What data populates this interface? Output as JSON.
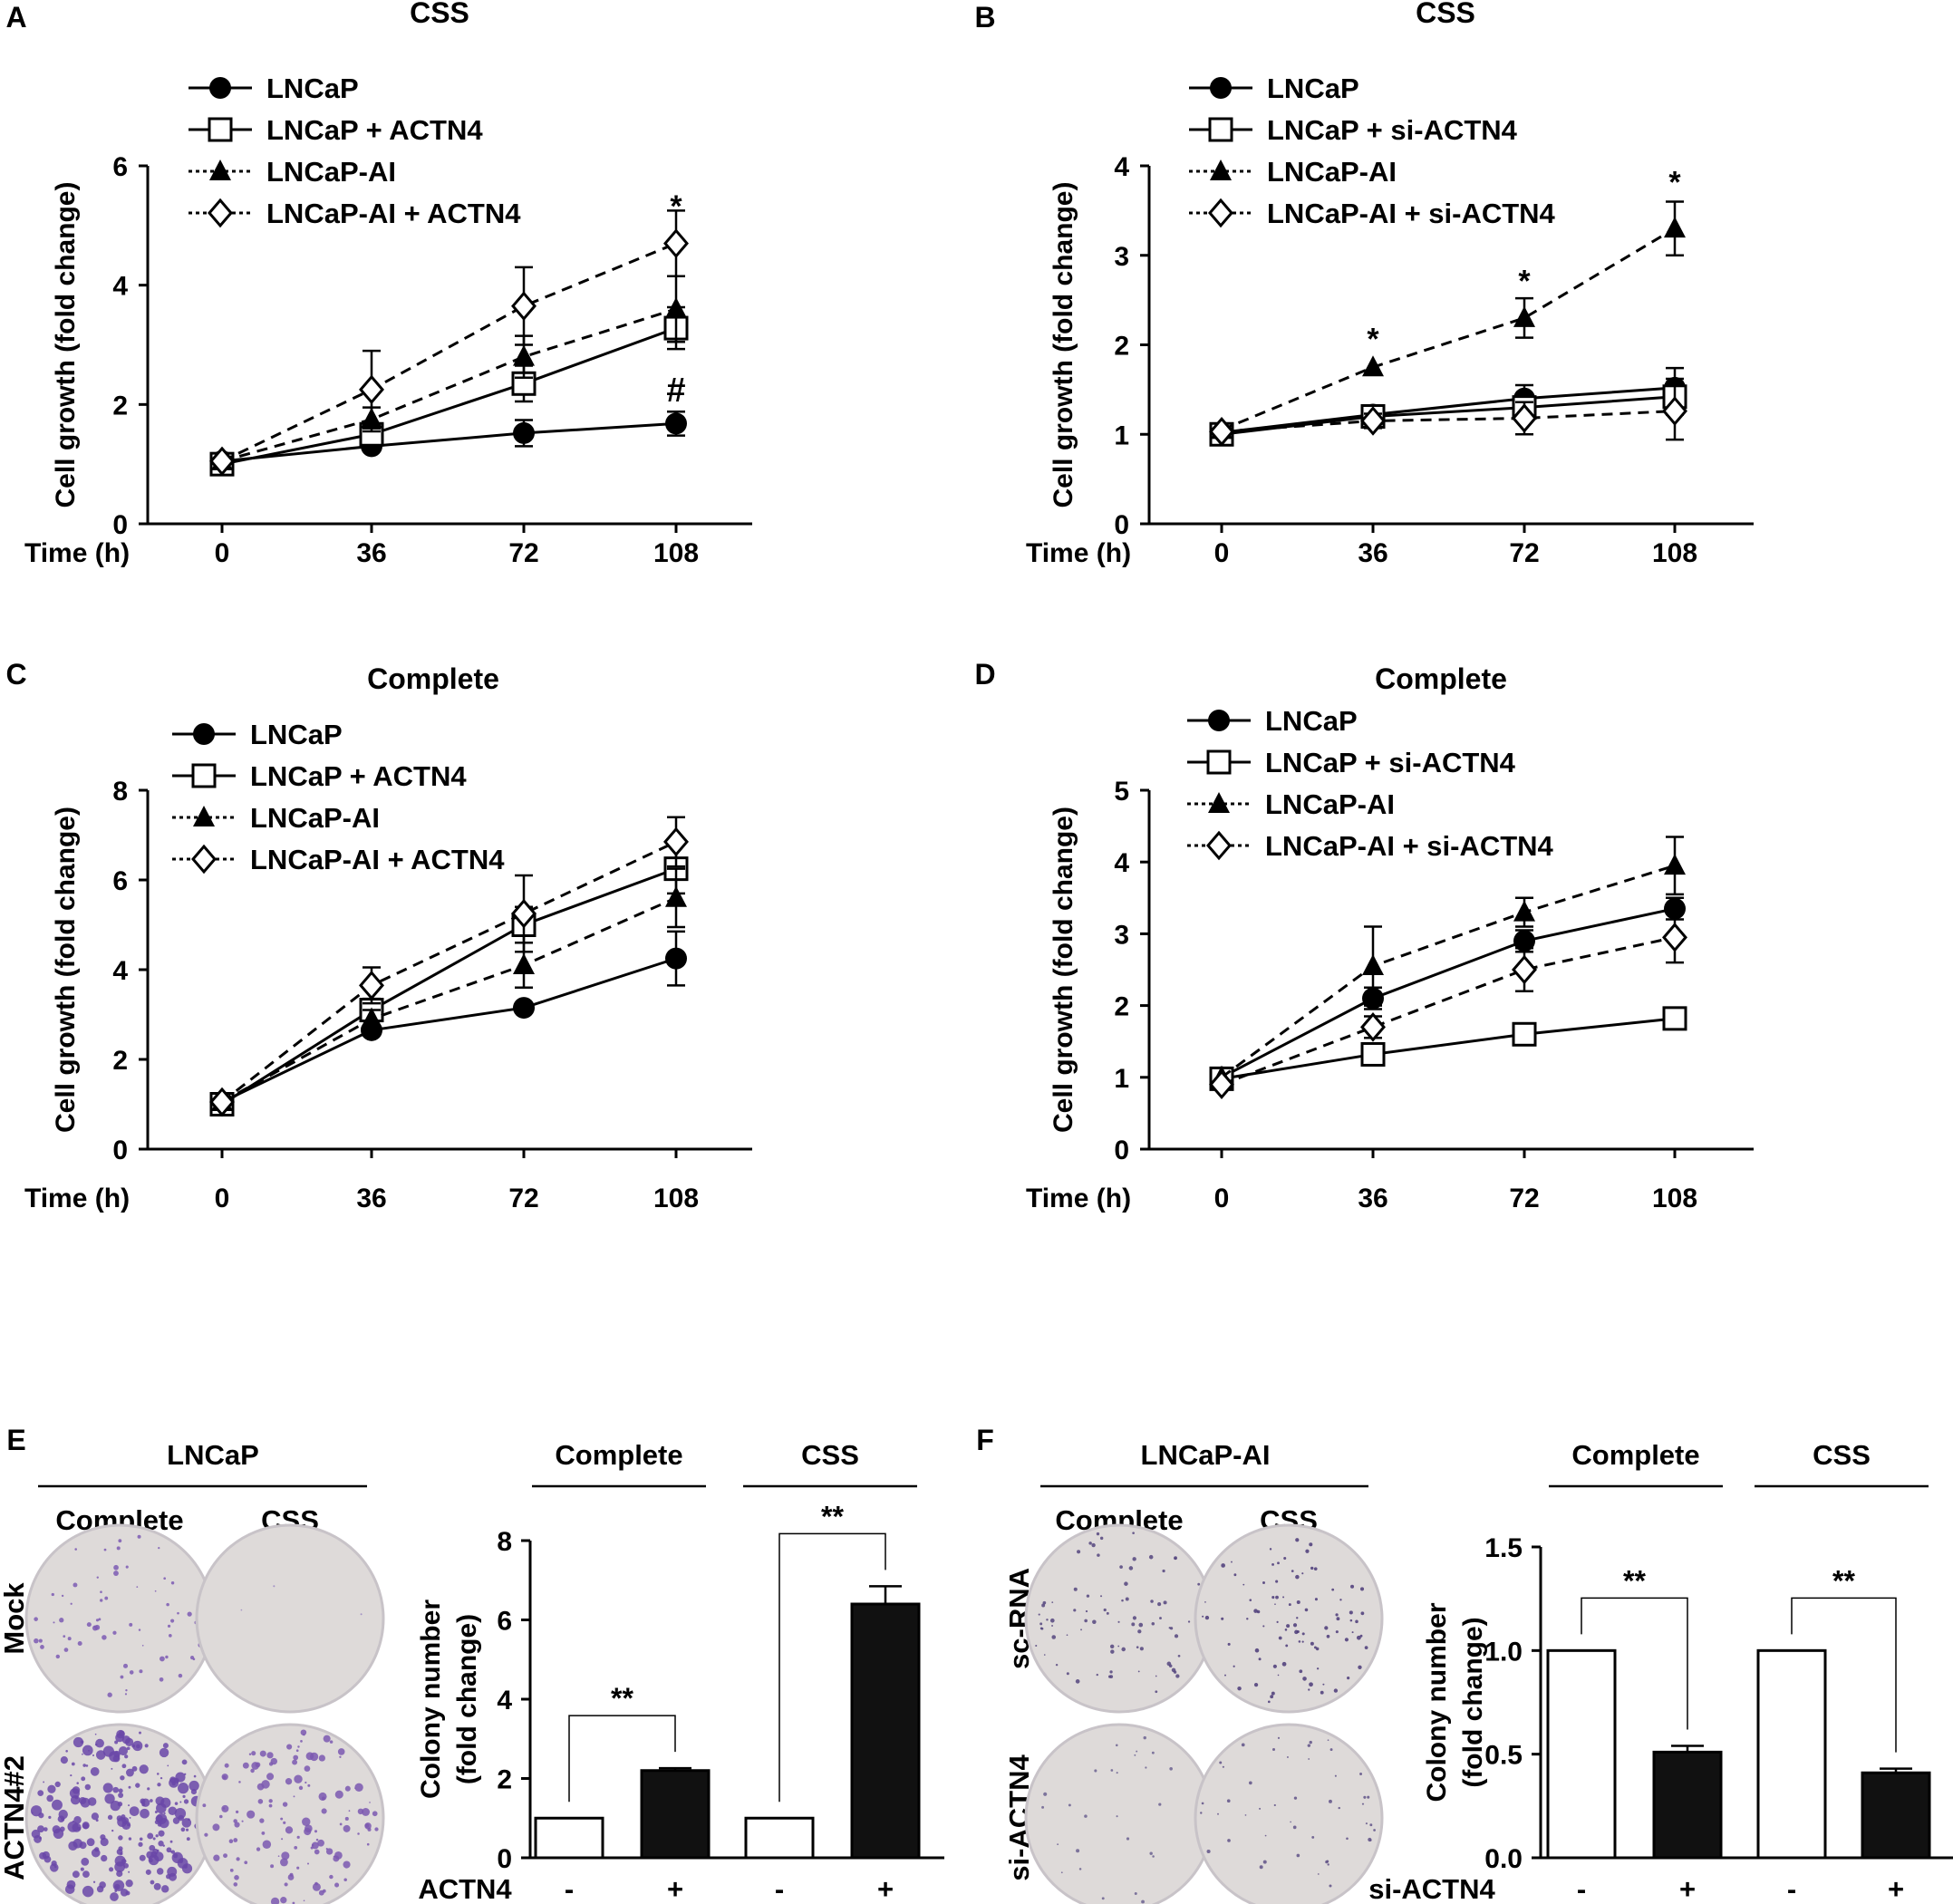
{
  "chart_data": [
    {
      "panel": "A",
      "type": "line",
      "title": "CSS",
      "ylabel": "Cell growth (fold change)",
      "xlabel": "Time (h)",
      "x": [
        0,
        36,
        72,
        108
      ],
      "ylim": [
        0,
        6
      ],
      "yticks": [
        0,
        2,
        4,
        6
      ],
      "series": [
        {
          "name": "LNCaP",
          "marker": "circle",
          "values": [
            1.05,
            1.3,
            1.52,
            1.68
          ],
          "err": [
            0.05,
            0.08,
            0.22,
            0.2
          ]
        },
        {
          "name": "LNCaP + ACTN4",
          "marker": "square",
          "values": [
            1.0,
            1.5,
            2.35,
            3.28
          ],
          "err": [
            0.05,
            0.15,
            0.3,
            0.35
          ]
        },
        {
          "name": "LNCaP-AI",
          "marker": "triangle",
          "values": [
            1.05,
            1.75,
            2.8,
            3.6
          ],
          "err": [
            0.05,
            0.2,
            0.35,
            0.55
          ]
        },
        {
          "name": "LNCaP-AI + ACTN4",
          "marker": "diamond",
          "values": [
            1.05,
            2.25,
            3.65,
            4.7
          ],
          "err": [
            0.05,
            0.65,
            0.65,
            0.55
          ]
        }
      ],
      "annotations": [
        {
          "text": "*",
          "x": 108,
          "y": 5.15
        },
        {
          "text": "#",
          "x": 108,
          "y": 2.05
        }
      ]
    },
    {
      "panel": "B",
      "type": "line",
      "title": "CSS",
      "ylabel": "Cell growth (fold change)",
      "xlabel": "Time (h)",
      "x": [
        0,
        36,
        72,
        108
      ],
      "ylim": [
        0,
        4
      ],
      "yticks": [
        0,
        1,
        2,
        3,
        4
      ],
      "series": [
        {
          "name": "LNCaP",
          "marker": "circle",
          "values": [
            1.02,
            1.22,
            1.4,
            1.52
          ],
          "err": [
            0.04,
            0.06,
            0.15,
            0.22
          ]
        },
        {
          "name": "LNCaP + si-ACTN4",
          "marker": "square",
          "values": [
            1.0,
            1.2,
            1.3,
            1.42
          ],
          "err": [
            0.04,
            0.06,
            0.12,
            0.2
          ]
        },
        {
          "name": "LNCaP-AI",
          "marker": "triangle",
          "values": [
            1.05,
            1.75,
            2.3,
            3.3
          ],
          "err": [
            0.04,
            0.06,
            0.22,
            0.3
          ]
        },
        {
          "name": "LNCaP-AI + si-ACTN4",
          "marker": "diamond",
          "values": [
            1.03,
            1.15,
            1.18,
            1.26
          ],
          "err": [
            0.04,
            0.08,
            0.18,
            0.32
          ]
        }
      ],
      "annotations": [
        {
          "text": "*",
          "x": 36,
          "y": 1.95
        },
        {
          "text": "*",
          "x": 72,
          "y": 2.6
        },
        {
          "text": "*",
          "x": 108,
          "y": 3.7
        }
      ]
    },
    {
      "panel": "C",
      "type": "line",
      "title": "Complete",
      "ylabel": "Cell growth (fold change)",
      "xlabel": "Time (h)",
      "x": [
        0,
        36,
        72,
        108
      ],
      "ylim": [
        0,
        8
      ],
      "yticks": [
        0,
        2,
        4,
        6,
        8
      ],
      "series": [
        {
          "name": "LNCaP",
          "marker": "circle",
          "values": [
            1.05,
            2.65,
            3.15,
            4.25
          ],
          "err": [
            0.05,
            0.1,
            0.1,
            0.6
          ]
        },
        {
          "name": "LNCaP + ACTN4",
          "marker": "square",
          "values": [
            1.0,
            3.1,
            5.0,
            6.25
          ],
          "err": [
            0.05,
            0.25,
            0.4,
            0.55
          ]
        },
        {
          "name": "LNCaP-AI",
          "marker": "triangle",
          "values": [
            1.05,
            2.9,
            4.1,
            5.6
          ],
          "err": [
            0.05,
            0.2,
            0.5,
            0.65
          ]
        },
        {
          "name": "LNCaP-AI + ACTN4",
          "marker": "diamond",
          "values": [
            1.05,
            3.65,
            5.25,
            6.85
          ],
          "err": [
            0.05,
            0.4,
            0.85,
            0.55
          ]
        }
      ],
      "annotations": []
    },
    {
      "panel": "D",
      "type": "line",
      "title": "Complete",
      "ylabel": "Cell growth (fold change)",
      "xlabel": "Time (h)",
      "x": [
        0,
        36,
        72,
        108
      ],
      "ylim": [
        0,
        5
      ],
      "yticks": [
        0,
        1,
        2,
        3,
        4,
        5
      ],
      "series": [
        {
          "name": "LNCaP",
          "marker": "circle",
          "values": [
            1.0,
            2.1,
            2.9,
            3.35
          ],
          "err": [
            0.05,
            0.15,
            0.15,
            0.15
          ]
        },
        {
          "name": "LNCaP + si-ACTN4",
          "marker": "square",
          "values": [
            0.98,
            1.32,
            1.6,
            1.82
          ],
          "err": [
            0.05,
            0.08,
            0.08,
            0.08
          ]
        },
        {
          "name": "LNCaP-AI",
          "marker": "triangle",
          "values": [
            1.0,
            2.55,
            3.3,
            3.95
          ],
          "err": [
            0.05,
            0.55,
            0.2,
            0.4
          ]
        },
        {
          "name": "LNCaP-AI + si-ACTN4",
          "marker": "diamond",
          "values": [
            0.9,
            1.7,
            2.5,
            2.95
          ],
          "err": [
            0.05,
            0.15,
            0.3,
            0.35
          ]
        }
      ],
      "annotations": []
    },
    {
      "panel": "E",
      "type": "bar",
      "image_group": {
        "title": "LNCaP",
        "columns": [
          "Complete",
          "CSS"
        ],
        "rows": [
          "Mock",
          "ACTN4#2"
        ]
      },
      "group_labels": [
        "Complete",
        "CSS"
      ],
      "ylabel_lines": [
        "Colony number",
        "(fold change)"
      ],
      "ylim": [
        0,
        8
      ],
      "yticks": [
        "0",
        "2",
        "4",
        "6",
        "8"
      ],
      "row_label": "ACTN4",
      "conditions": [
        "-",
        "+",
        "-",
        "+"
      ],
      "values": [
        1.0,
        2.2,
        1.0,
        6.4
      ],
      "err": [
        0,
        0.06,
        0,
        0.45
      ],
      "fills": [
        "open",
        "filled",
        "open",
        "filled"
      ],
      "significance": [
        {
          "text": "**",
          "pair": [
            0,
            1
          ]
        },
        {
          "text": "**",
          "pair": [
            2,
            3
          ]
        }
      ]
    },
    {
      "panel": "F",
      "type": "bar",
      "image_group": {
        "title": "LNCaP-AI",
        "columns": [
          "Complete",
          "CSS"
        ],
        "rows": [
          "sc-RNA",
          "si-ACTN4"
        ]
      },
      "group_labels": [
        "Complete",
        "CSS"
      ],
      "ylabel_lines": [
        "Colony number",
        "(fold change)"
      ],
      "ylim": [
        0,
        1.5
      ],
      "yticks": [
        "0.0",
        "0.5",
        "1.0",
        "1.5"
      ],
      "row_label": "si-ACTN4",
      "conditions": [
        "-",
        "+",
        "-",
        "+"
      ],
      "values": [
        1.0,
        0.51,
        1.0,
        0.41
      ],
      "err": [
        0,
        0.03,
        0,
        0.02
      ],
      "fills": [
        "open",
        "filled",
        "open",
        "filled"
      ],
      "significance": [
        {
          "text": "**",
          "pair": [
            0,
            1
          ]
        },
        {
          "text": "**",
          "pair": [
            2,
            3
          ]
        }
      ]
    }
  ]
}
